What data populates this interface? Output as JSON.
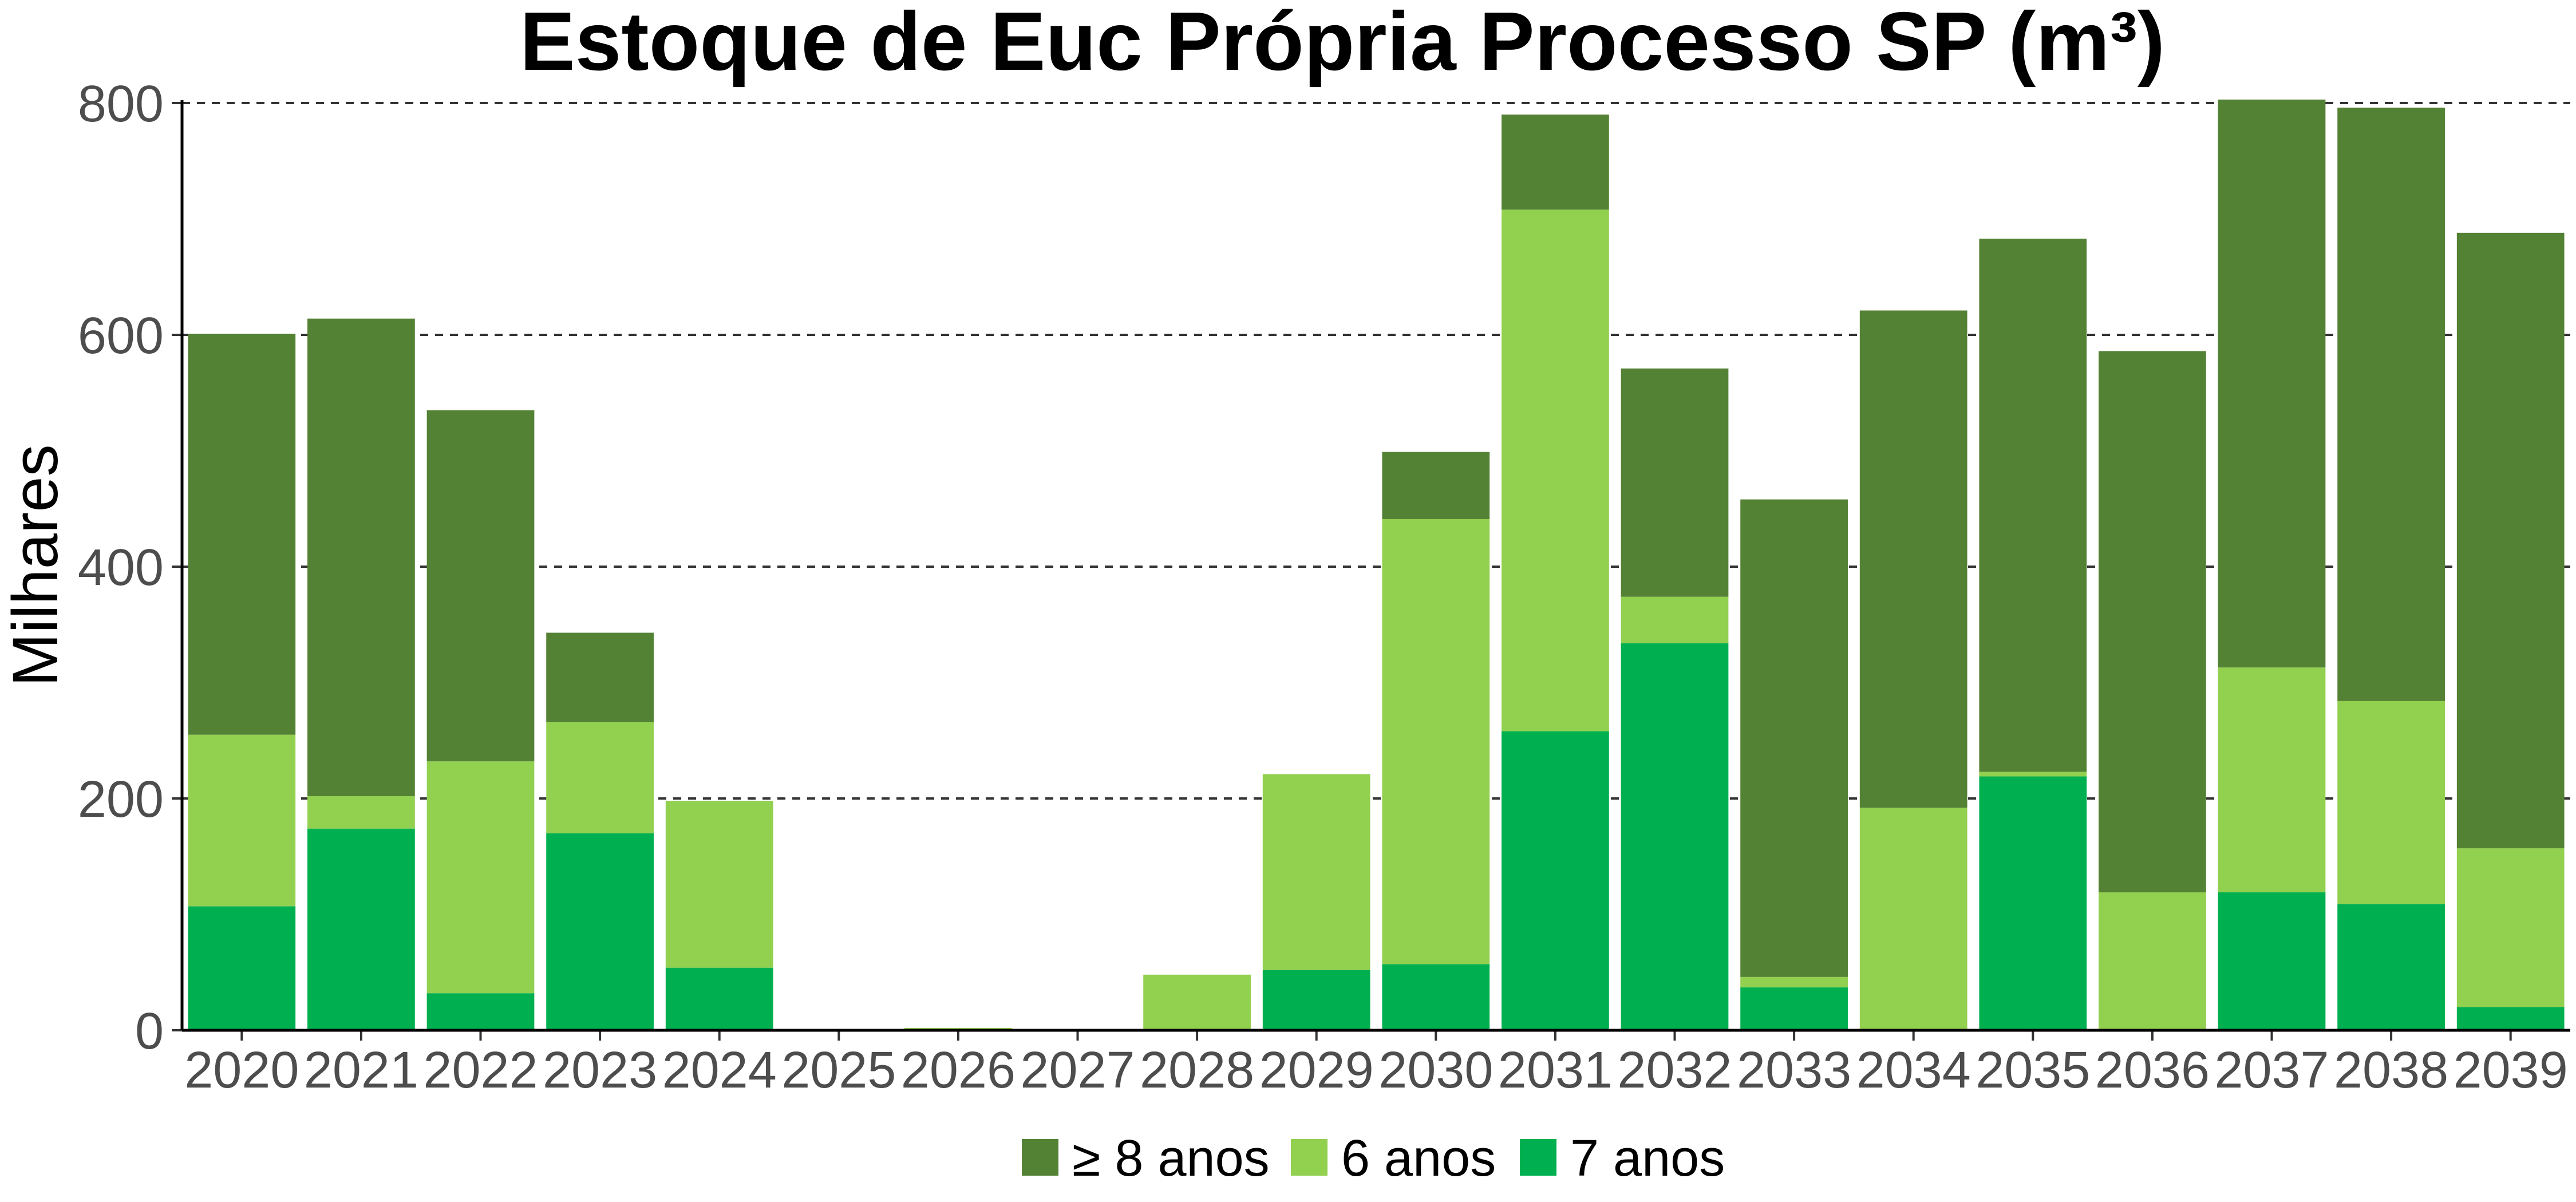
{
  "chart_data": {
    "type": "bar",
    "stacked": true,
    "title": "Estoque de Euc Própria Processo SP (m³)",
    "xlabel": "",
    "ylabel": "Milhares",
    "ylim": [
      0,
      800
    ],
    "yticks": [
      0,
      200,
      400,
      600,
      800
    ],
    "grid": "horizontal-dashed",
    "legend_position": "bottom",
    "categories": [
      "2020",
      "2021",
      "2022",
      "2023",
      "2024",
      "2025",
      "2026",
      "2027",
      "2028",
      "2029",
      "2030",
      "2031",
      "2032",
      "2033",
      "2034",
      "2035",
      "2036",
      "2037",
      "2038",
      "2039"
    ],
    "series": [
      {
        "name": "7 anos",
        "color": "#00b050",
        "values": [
          107,
          174,
          32,
          170,
          54,
          0,
          0,
          0,
          0,
          52,
          57,
          258,
          334,
          37,
          0,
          219,
          0,
          119,
          109,
          20
        ]
      },
      {
        "name": "6 anos",
        "color": "#92d050",
        "values": [
          148,
          28,
          200,
          96,
          144,
          0,
          2,
          0,
          48,
          169,
          384,
          450,
          40,
          9,
          192,
          4,
          119,
          194,
          175,
          137
        ]
      },
      {
        "name": "≥ 8 anos",
        "color": "#548235",
        "values": [
          346,
          412,
          303,
          77,
          0,
          0,
          0,
          0,
          0,
          0,
          58,
          82,
          197,
          412,
          429,
          460,
          467,
          490,
          512,
          531
        ]
      }
    ],
    "legend_order": [
      "≥ 8 anos",
      "6 anos",
      "7 anos"
    ]
  }
}
